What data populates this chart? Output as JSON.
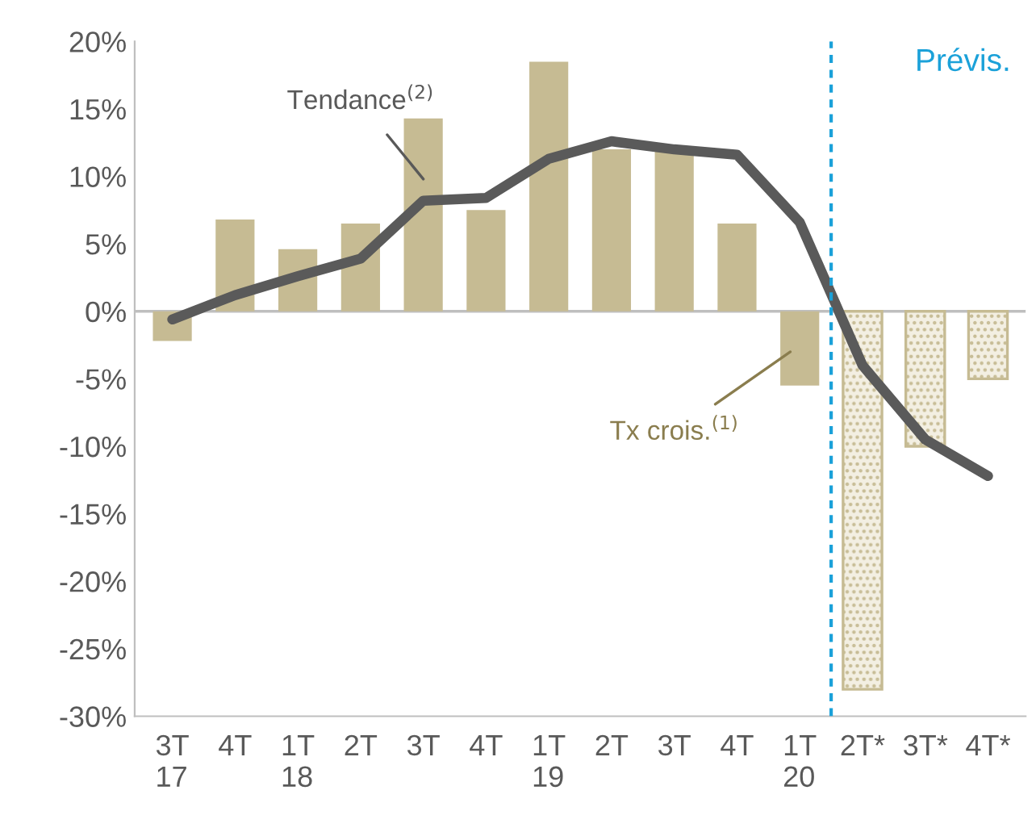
{
  "chart_data": {
    "type": "bar",
    "categories": [
      "3T\n17",
      "4T",
      "1T\n18",
      "2T",
      "3T",
      "4T",
      "1T\n19",
      "2T",
      "3T",
      "4T",
      "1T\n20",
      "2T*",
      "3T*",
      "4T*"
    ],
    "series": [
      {
        "color": "#c6bb93",
        "values": [
          -2.2,
          6.8,
          4.6,
          6.5,
          14.3,
          7.5,
          18.5,
          12.0,
          12.0,
          6.5,
          -5.5,
          null,
          null,
          null
        ]
      },
      {
        "color": "#c6bb93",
        "values": [
          null,
          null,
          null,
          null,
          null,
          null,
          null,
          null,
          null,
          null,
          null,
          -28.0,
          -10.0,
          -5.0
        ]
      },
      {
        "type": "line",
        "color": "#5a5a5a",
        "values": [
          -0.6,
          1.2,
          2.6,
          3.9,
          8.2,
          8.4,
          11.3,
          12.6,
          12.0,
          11.6,
          6.6,
          -4.0,
          -9.5,
          -12.2
        ]
      }
    ],
    "ylim": [
      -30,
      20
    ],
    "yticks": [
      {
        "value": -30,
        "label": "-30%"
      },
      {
        "value": -25,
        "label": "-25%"
      },
      {
        "value": -20,
        "label": "-20%"
      },
      {
        "value": -15,
        "label": "-15%"
      },
      {
        "value": -10,
        "label": "-10%"
      },
      {
        "value": -5,
        "label": "-5%"
      },
      {
        "value": 0,
        "label": "0%"
      },
      {
        "value": 5,
        "label": "5%"
      },
      {
        "value": 10,
        "label": "10%"
      },
      {
        "value": 15,
        "label": "15%"
      },
      {
        "value": 20,
        "label": "20%"
      }
    ],
    "ref_lines": [
      {
        "axis": "y",
        "value": 0,
        "color": "#bfbfbf"
      }
    ],
    "annotations": [
      "Tendance$^{(2)}$",
      "Tx crois.$^{(1)}$",
      "Prévis."
    ],
    "grid": false,
    "legend": false
  }
}
